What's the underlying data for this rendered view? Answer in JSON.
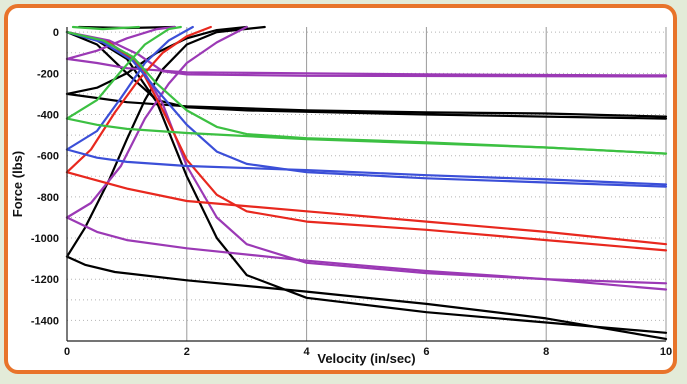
{
  "chart_data": {
    "type": "line",
    "title": "",
    "xlabel": "Velocity (in/sec)",
    "ylabel": "Force (lbs)",
    "xlim": [
      0,
      10
    ],
    "ylim": [
      -1500,
      25
    ],
    "x_ticks": [
      0,
      2,
      4,
      6,
      8,
      10
    ],
    "y_ticks": [
      0,
      -200,
      -400,
      -600,
      -800,
      -1000,
      -1200,
      -1400
    ],
    "grid": "vertical-major-dotted-horizontal",
    "legend": "none",
    "series": [
      {
        "color": "#000000",
        "points": [
          [
            0,
            -1090
          ],
          [
            0.3,
            -1130
          ],
          [
            0.8,
            -1165
          ],
          [
            2,
            -1205
          ],
          [
            4,
            -1260
          ],
          [
            6,
            -1320
          ],
          [
            8,
            -1390
          ],
          [
            10,
            -1490
          ]
        ]
      },
      {
        "color": "#000000",
        "points": [
          [
            0,
            -1090
          ],
          [
            0.3,
            -950
          ],
          [
            0.7,
            -720
          ],
          [
            1.0,
            -520
          ],
          [
            1.3,
            -330
          ],
          [
            1.6,
            -180
          ],
          [
            2,
            -60
          ],
          [
            2.5,
            0
          ],
          [
            3.3,
            25
          ]
        ]
      },
      {
        "color": "#000000",
        "points": [
          [
            0,
            0
          ],
          [
            0.5,
            -40
          ],
          [
            1.0,
            -130
          ],
          [
            1.5,
            -340
          ],
          [
            2,
            -700
          ],
          [
            2.5,
            -1000
          ],
          [
            3,
            -1180
          ],
          [
            4,
            -1290
          ],
          [
            6,
            -1360
          ],
          [
            8,
            -1410
          ],
          [
            10,
            -1460
          ]
        ]
      },
      {
        "color": "#000000",
        "points": [
          [
            0,
            -300
          ],
          [
            0.5,
            -270
          ],
          [
            1.0,
            -200
          ],
          [
            1.5,
            -100
          ],
          [
            2,
            -30
          ],
          [
            2.5,
            10
          ],
          [
            3,
            25
          ]
        ]
      },
      {
        "color": "#000000",
        "points": [
          [
            0,
            -300
          ],
          [
            0.5,
            -320
          ],
          [
            1,
            -340
          ],
          [
            2,
            -360
          ],
          [
            4,
            -380
          ],
          [
            6,
            -390
          ],
          [
            8,
            -395
          ],
          [
            10,
            -410
          ]
        ]
      },
      {
        "color": "#000000",
        "points": [
          [
            0,
            0
          ],
          [
            0.5,
            -60
          ],
          [
            1,
            -200
          ],
          [
            1.5,
            -330
          ],
          [
            2,
            -365
          ],
          [
            3,
            -380
          ],
          [
            6,
            -400
          ],
          [
            8,
            -410
          ],
          [
            10,
            -420
          ]
        ]
      },
      {
        "color": "#000000",
        "points": [
          [
            0.2,
            25
          ],
          [
            1.0,
            20
          ],
          [
            1.8,
            25
          ]
        ]
      },
      {
        "color": "#9b39b5",
        "points": [
          [
            0,
            -900
          ],
          [
            0.4,
            -830
          ],
          [
            0.9,
            -650
          ],
          [
            1.3,
            -420
          ],
          [
            1.7,
            -250
          ],
          [
            2,
            -150
          ],
          [
            2.5,
            -50
          ],
          [
            3,
            25
          ]
        ]
      },
      {
        "color": "#9b39b5",
        "points": [
          [
            0,
            -900
          ],
          [
            0.5,
            -970
          ],
          [
            1,
            -1010
          ],
          [
            2,
            -1050
          ],
          [
            4,
            -1110
          ],
          [
            6,
            -1160
          ],
          [
            8,
            -1200
          ],
          [
            10,
            -1250
          ]
        ]
      },
      {
        "color": "#9b39b5",
        "points": [
          [
            0,
            0
          ],
          [
            0.7,
            -50
          ],
          [
            1.2,
            -150
          ],
          [
            1.6,
            -350
          ],
          [
            2,
            -650
          ],
          [
            2.5,
            -900
          ],
          [
            3,
            -1030
          ],
          [
            4,
            -1120
          ],
          [
            6,
            -1170
          ],
          [
            8,
            -1200
          ],
          [
            10,
            -1220
          ]
        ]
      },
      {
        "color": "#9b39b5",
        "points": [
          [
            0,
            -130
          ],
          [
            0.5,
            -150
          ],
          [
            1,
            -175
          ],
          [
            2,
            -195
          ],
          [
            4,
            -200
          ],
          [
            6,
            -205
          ],
          [
            8,
            -208
          ],
          [
            10,
            -210
          ]
        ]
      },
      {
        "color": "#9b39b5",
        "points": [
          [
            0,
            0
          ],
          [
            0.7,
            -40
          ],
          [
            1.2,
            -110
          ],
          [
            1.6,
            -190
          ],
          [
            2,
            -205
          ],
          [
            4,
            -212
          ],
          [
            10,
            -215
          ]
        ]
      },
      {
        "color": "#9b39b5",
        "points": [
          [
            0,
            -130
          ],
          [
            0.5,
            -90
          ],
          [
            1,
            -30
          ],
          [
            1.5,
            15
          ],
          [
            1.8,
            25
          ]
        ]
      },
      {
        "color": "#e8281e",
        "points": [
          [
            0,
            -680
          ],
          [
            0.5,
            -720
          ],
          [
            1,
            -760
          ],
          [
            2,
            -820
          ],
          [
            4,
            -870
          ],
          [
            6,
            -920
          ],
          [
            8,
            -970
          ],
          [
            10,
            -1030
          ]
        ]
      },
      {
        "color": "#e8281e",
        "points": [
          [
            0,
            -680
          ],
          [
            0.4,
            -570
          ],
          [
            0.8,
            -390
          ],
          [
            1.2,
            -230
          ],
          [
            1.6,
            -100
          ],
          [
            2,
            -20
          ],
          [
            2.4,
            25
          ]
        ]
      },
      {
        "color": "#e8281e",
        "points": [
          [
            0,
            0
          ],
          [
            0.7,
            -50
          ],
          [
            1.2,
            -160
          ],
          [
            1.6,
            -380
          ],
          [
            2,
            -620
          ],
          [
            2.5,
            -790
          ],
          [
            3,
            -870
          ],
          [
            4,
            -920
          ],
          [
            6,
            -960
          ],
          [
            8,
            -1010
          ],
          [
            10,
            -1060
          ]
        ]
      },
      {
        "color": "#3b4fd8",
        "points": [
          [
            0,
            -570
          ],
          [
            0.5,
            -610
          ],
          [
            1,
            -630
          ],
          [
            2,
            -650
          ],
          [
            4,
            -670
          ],
          [
            6,
            -695
          ],
          [
            8,
            -715
          ],
          [
            10,
            -740
          ]
        ]
      },
      {
        "color": "#3b4fd8",
        "points": [
          [
            0,
            -570
          ],
          [
            0.5,
            -480
          ],
          [
            0.9,
            -320
          ],
          [
            1.3,
            -150
          ],
          [
            1.7,
            -40
          ],
          [
            2.1,
            25
          ]
        ]
      },
      {
        "color": "#3b4fd8",
        "points": [
          [
            0,
            0
          ],
          [
            0.6,
            -50
          ],
          [
            1.1,
            -140
          ],
          [
            1.5,
            -280
          ],
          [
            2,
            -450
          ],
          [
            2.5,
            -580
          ],
          [
            3,
            -640
          ],
          [
            4,
            -680
          ],
          [
            6,
            -710
          ],
          [
            8,
            -730
          ],
          [
            10,
            -750
          ]
        ]
      },
      {
        "color": "#3cc042",
        "points": [
          [
            0,
            -420
          ],
          [
            0.5,
            -450
          ],
          [
            1,
            -470
          ],
          [
            2,
            -490
          ],
          [
            4,
            -520
          ],
          [
            6,
            -540
          ],
          [
            8,
            -560
          ],
          [
            10,
            -590
          ]
        ]
      },
      {
        "color": "#3cc042",
        "points": [
          [
            0,
            -420
          ],
          [
            0.5,
            -330
          ],
          [
            0.9,
            -190
          ],
          [
            1.3,
            -60
          ],
          [
            1.7,
            15
          ],
          [
            1.9,
            25
          ]
        ]
      },
      {
        "color": "#3cc042",
        "points": [
          [
            0,
            0
          ],
          [
            0.6,
            -40
          ],
          [
            1.1,
            -120
          ],
          [
            1.5,
            -250
          ],
          [
            2,
            -380
          ],
          [
            2.5,
            -460
          ],
          [
            3,
            -495
          ],
          [
            4,
            -515
          ],
          [
            6,
            -535
          ],
          [
            8,
            -560
          ],
          [
            10,
            -590
          ]
        ]
      },
      {
        "color": "#3cc042",
        "points": [
          [
            0.1,
            25
          ],
          [
            0.6,
            15
          ],
          [
            1.2,
            25
          ]
        ]
      }
    ]
  }
}
